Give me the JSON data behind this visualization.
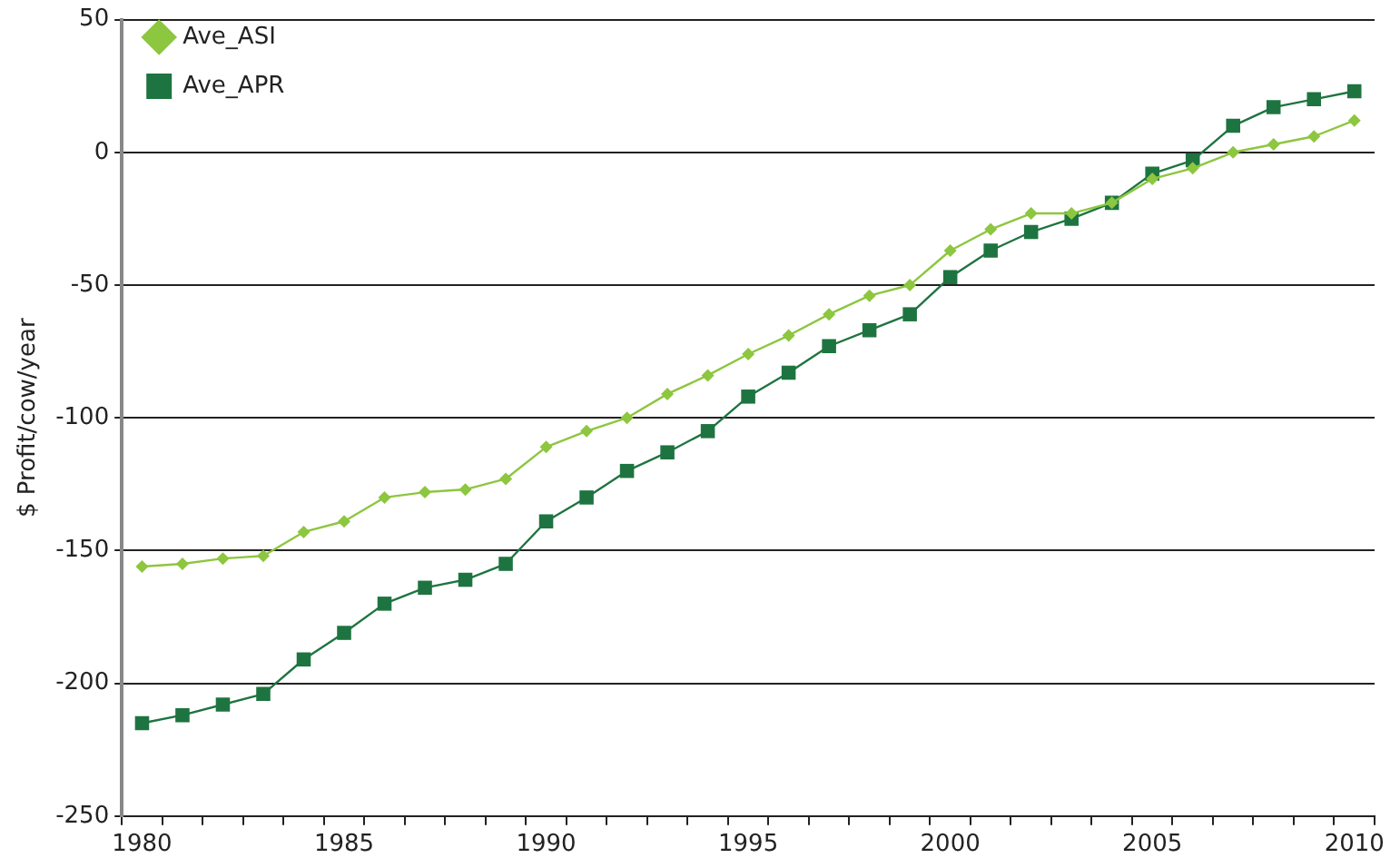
{
  "chart_data": {
    "type": "line",
    "ylabel": "$ Profit/cow/year",
    "categories": [
      "1980",
      null,
      null,
      null,
      null,
      "1985",
      null,
      null,
      null,
      null,
      "1990",
      null,
      null,
      null,
      null,
      "1995",
      null,
      null,
      null,
      null,
      "2000",
      null,
      null,
      null,
      null,
      "2005",
      null,
      null,
      null,
      null,
      "2010"
    ],
    "series": [
      {
        "name": "Ave_ASI",
        "color": "#8dc63f",
        "marker": "diamond",
        "values": [
          -156,
          -155,
          -153,
          -152,
          -143,
          -139,
          -130,
          -128,
          -127,
          -123,
          -111,
          -105,
          -100,
          -91,
          -84,
          -76,
          -69,
          -61,
          -54,
          -50,
          -37,
          -29,
          -23,
          -23,
          -19,
          -10,
          -6,
          0,
          3,
          6,
          12
        ]
      },
      {
        "name": "Ave_APR",
        "color": "#1e7440",
        "marker": "square",
        "values": [
          -215,
          -212,
          -208,
          -204,
          -191,
          -181,
          -170,
          -164,
          -161,
          -155,
          -139,
          -130,
          -120,
          -113,
          -105,
          -92,
          -83,
          -73,
          -67,
          -61,
          -47,
          -37,
          -30,
          -25,
          -19,
          -8,
          -3,
          10,
          17,
          20,
          23
        ]
      }
    ],
    "ylim": [
      -250,
      50
    ],
    "yticks": [
      -250,
      -200,
      -150,
      -100,
      -50,
      0,
      50
    ],
    "grid": "y",
    "legend": "top left"
  }
}
